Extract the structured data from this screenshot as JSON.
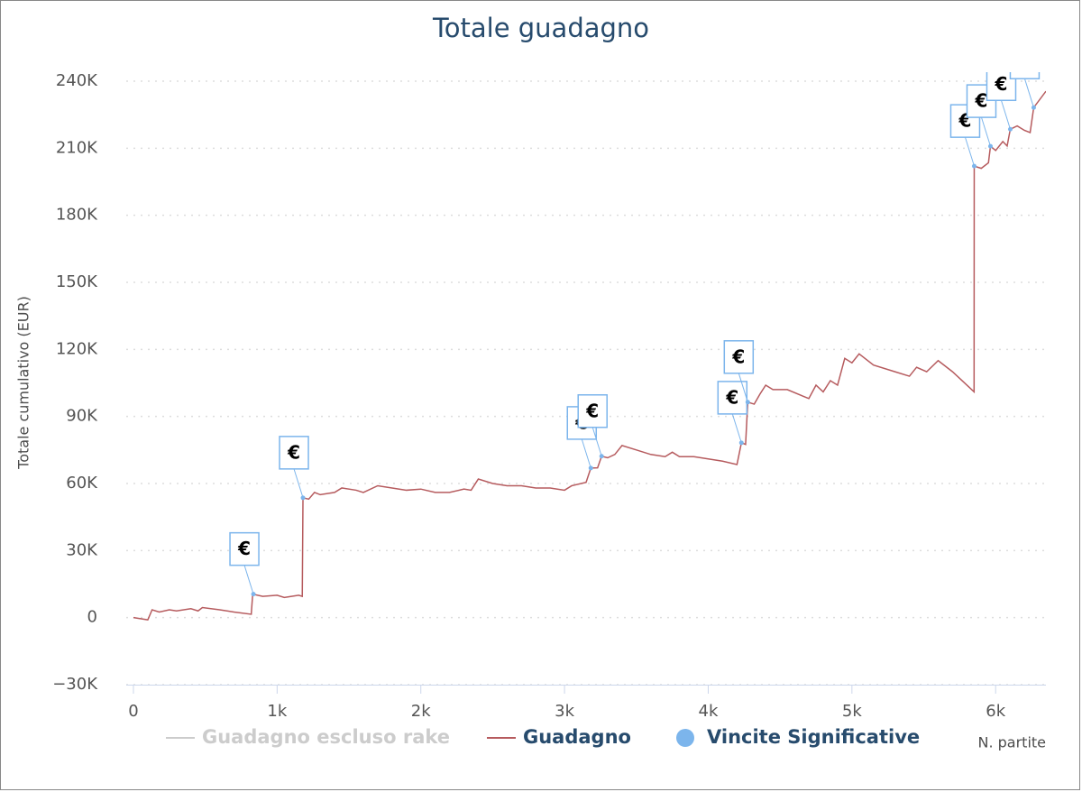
{
  "chart_data": {
    "type": "line",
    "title": "Totale guadagno",
    "y_axis_label": "Totale cumulativo (EUR)",
    "x_axis_label": "N. partite",
    "xlim": [
      -50,
      6350
    ],
    "ylim": [
      -30000,
      240000
    ],
    "xticks": [
      0,
      {
        "value": 1000,
        "label": "1k"
      },
      {
        "value": 2000,
        "label": "2k"
      },
      {
        "value": 3000,
        "label": "3k"
      },
      {
        "value": 4000,
        "label": "4k"
      },
      {
        "value": 5000,
        "label": "5k"
      },
      {
        "value": 6000,
        "label": "6k"
      }
    ],
    "yticks": [
      {
        "value": -30000,
        "label": "−30K"
      },
      0,
      {
        "value": 30000,
        "label": "30K"
      },
      {
        "value": 60000,
        "label": "60K"
      },
      {
        "value": 90000,
        "label": "90K"
      },
      {
        "value": 120000,
        "label": "120K"
      },
      {
        "value": 150000,
        "label": "150K"
      },
      {
        "value": 180000,
        "label": "180K"
      },
      {
        "value": 210000,
        "label": "210K"
      },
      {
        "value": 240000,
        "label": "240K"
      }
    ],
    "grid": true,
    "series": [
      {
        "name": "Guadagno escluso rake",
        "color": "#cccccc",
        "visible": false
      },
      {
        "name": "Guadagno",
        "color": "#b65b5e",
        "x": [
          0,
          100,
          130,
          180,
          250,
          300,
          400,
          450,
          480,
          600,
          700,
          820,
          830,
          900,
          1000,
          1050,
          1100,
          1150,
          1175,
          1180,
          1220,
          1260,
          1300,
          1400,
          1450,
          1550,
          1600,
          1700,
          1800,
          1900,
          2000,
          2100,
          2200,
          2300,
          2350,
          2400,
          2500,
          2600,
          2700,
          2800,
          2900,
          3000,
          3050,
          3150,
          3183,
          3230,
          3258,
          3300,
          3350,
          3400,
          3500,
          3600,
          3700,
          3750,
          3800,
          3900,
          4000,
          4100,
          4200,
          4231,
          4260,
          4275,
          4320,
          4360,
          4400,
          4450,
          4550,
          4700,
          4750,
          4800,
          4850,
          4900,
          4950,
          5000,
          5050,
          5150,
          5300,
          5400,
          5450,
          5520,
          5600,
          5700,
          5800,
          5850,
          5851,
          5900,
          5950,
          5964,
          6000,
          6050,
          6080,
          6102,
          6150,
          6200,
          6240,
          6265,
          6350
        ],
        "values": [
          0,
          -1000,
          3500,
          2500,
          3500,
          3000,
          4000,
          3000,
          4500,
          3500,
          2500,
          1500,
          10500,
          9500,
          10000,
          9000,
          9500,
          10000,
          9500,
          53600,
          53000,
          56000,
          55000,
          56000,
          58000,
          57000,
          56000,
          59000,
          58000,
          57000,
          57500,
          56000,
          56000,
          57500,
          57000,
          62000,
          60000,
          59000,
          59000,
          58000,
          58000,
          57000,
          59000,
          60500,
          66900,
          67000,
          72200,
          71500,
          73000,
          77000,
          75000,
          73000,
          72000,
          74000,
          72000,
          72000,
          71000,
          70000,
          68500,
          78200,
          77500,
          96400,
          95500,
          100000,
          104000,
          102000,
          102000,
          98000,
          104000,
          101000,
          106000,
          104000,
          116000,
          114000,
          118000,
          113000,
          110000,
          108000,
          112000,
          110000,
          115000,
          110000,
          104000,
          101000,
          202000,
          201000,
          203500,
          210900,
          209000,
          213000,
          211000,
          218500,
          220000,
          218000,
          217000,
          228200,
          235500
        ]
      },
      {
        "name": "Vincite Significative",
        "color": "#7cb5ec",
        "flag_label": "€",
        "x": [
          835,
          1180,
          3183,
          3258,
          4231,
          4275,
          5851,
          5964,
          6102,
          6265
        ],
        "values": [
          10500,
          53600,
          66900,
          72200,
          78200,
          96400,
          202000,
          210900,
          218500,
          228200
        ]
      }
    ]
  }
}
